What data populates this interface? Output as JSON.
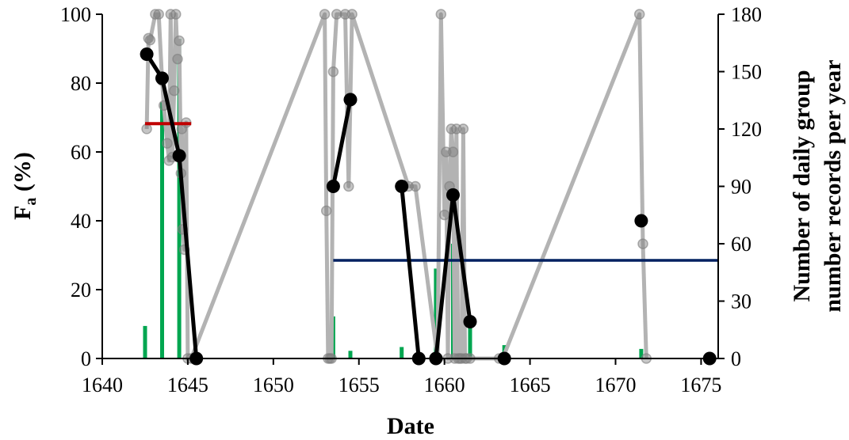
{
  "chart_data": {
    "type": "line",
    "title": "",
    "xlabel": "Date",
    "ylabel_main": "F",
    "ylabel_sub": "a",
    "ylabel_suffix": " (%)",
    "y2label_line1": "Number of daily group",
    "y2label_line2": "number records per year",
    "xlim": [
      1640,
      1676
    ],
    "ylim": [
      0,
      100
    ],
    "y2lim": [
      0,
      180
    ],
    "xticks": [
      1640,
      1645,
      1650,
      1655,
      1660,
      1665,
      1670,
      1675
    ],
    "yticks": [
      0,
      20,
      40,
      60,
      80,
      100
    ],
    "y2ticks": [
      0,
      30,
      60,
      90,
      120,
      150,
      180
    ],
    "colors": {
      "bars": "#00a650",
      "gray_series": "#b3b3b3",
      "gray_points": "#7f7f7f",
      "black_series": "#000000",
      "red_line": "#c00000",
      "navy_line": "#002060"
    },
    "series": [
      {
        "role": "bars",
        "axis": "right",
        "points": [
          {
            "x": 1642.5,
            "y": 17
          },
          {
            "x": 1643.5,
            "y": 134
          },
          {
            "x": 1644.5,
            "y": 167
          },
          {
            "x": 1653.5,
            "y": 22
          },
          {
            "x": 1654.5,
            "y": 4
          },
          {
            "x": 1657.5,
            "y": 6
          },
          {
            "x": 1659.5,
            "y": 47
          },
          {
            "x": 1660.5,
            "y": 60
          },
          {
            "x": 1661.5,
            "y": 17
          },
          {
            "x": 1663.5,
            "y": 7
          },
          {
            "x": 1671.5,
            "y": 5
          }
        ]
      },
      {
        "role": "gray",
        "axis": "left",
        "points": [
          [
            1642.6,
            66.7
          ],
          [
            1642.7,
            93
          ],
          [
            1642.8,
            92.5
          ],
          [
            1643.1,
            100
          ],
          [
            1643.3,
            100
          ],
          [
            1643.5,
            80.7
          ],
          [
            1643.6,
            73.5
          ],
          [
            1643.8,
            62.5
          ],
          [
            1643.9,
            57.5
          ],
          [
            1644.0,
            100
          ],
          [
            1644.1,
            58.5
          ],
          [
            1644.2,
            77.8
          ],
          [
            1644.3,
            100
          ],
          [
            1644.4,
            87
          ],
          [
            1644.5,
            92.3
          ],
          [
            1644.6,
            53.8
          ],
          [
            1644.65,
            66.7
          ],
          [
            1644.7,
            37.5
          ],
          [
            1644.8,
            31.6
          ],
          [
            1644.9,
            68.5
          ],
          [
            1645.0,
            0
          ],
          [
            1645.2,
            0
          ],
          [
            1653.0,
            100
          ],
          [
            1653.1,
            42.9
          ],
          [
            1653.2,
            0
          ],
          [
            1653.3,
            0
          ],
          [
            1653.4,
            0
          ],
          [
            1653.5,
            83.3
          ],
          [
            1653.7,
            100
          ],
          [
            1654.2,
            100
          ],
          [
            1654.4,
            50
          ],
          [
            1654.6,
            100
          ],
          [
            1657.9,
            50
          ],
          [
            1658.3,
            50
          ],
          [
            1659.6,
            0
          ],
          [
            1659.8,
            100
          ],
          [
            1660.0,
            41.7
          ],
          [
            1660.1,
            60
          ],
          [
            1660.2,
            0
          ],
          [
            1660.3,
            50
          ],
          [
            1660.4,
            66.7
          ],
          [
            1660.5,
            60
          ],
          [
            1660.6,
            0
          ],
          [
            1660.7,
            66.7
          ],
          [
            1660.8,
            0
          ],
          [
            1660.9,
            0
          ],
          [
            1661.0,
            0
          ],
          [
            1661.1,
            66.7
          ],
          [
            1661.2,
            0
          ],
          [
            1661.3,
            0
          ],
          [
            1661.5,
            0
          ],
          [
            1663.2,
            0
          ],
          [
            1663.4,
            0
          ],
          [
            1671.4,
            100
          ],
          [
            1671.6,
            33.3
          ],
          [
            1671.8,
            0
          ]
        ]
      },
      {
        "role": "black",
        "axis": "left",
        "segments": [
          [
            [
              1642.6,
              88.4
            ],
            [
              1643.5,
              81.4
            ],
            [
              1644.5,
              58.9
            ],
            [
              1645.5,
              0
            ]
          ],
          [
            [
              1653.5,
              50
            ],
            [
              1654.5,
              75.2
            ]
          ],
          [
            [
              1657.5,
              50
            ],
            [
              1658.5,
              0
            ]
          ],
          [
            [
              1659.5,
              0
            ],
            [
              1660.5,
              47.5
            ],
            [
              1661.5,
              10.7
            ]
          ],
          [
            [
              1663.5,
              0
            ]
          ],
          [
            [
              1671.5,
              40
            ]
          ],
          [
            [
              1675.5,
              0
            ]
          ]
        ]
      },
      {
        "role": "red-reference",
        "axis": "left",
        "from": 1642.5,
        "to": 1645.2,
        "y": 68.2
      },
      {
        "role": "navy-reference",
        "axis": "left",
        "from": 1653.5,
        "to": 1676,
        "y": 28.5
      }
    ]
  }
}
